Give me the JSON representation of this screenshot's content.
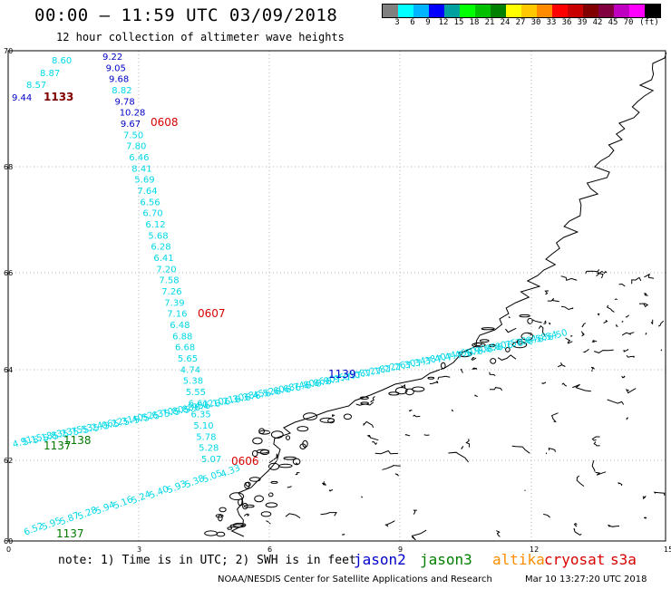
{
  "header": {
    "title": "00:00 – 11:59 UTC 03/09/2018",
    "subtitle": "12 hour collection of altimeter wave heights"
  },
  "legend": {
    "colors": [
      "#808080",
      "#00ffff",
      "#00b4ff",
      "#0000ff",
      "#00a0a0",
      "#00ff00",
      "#00c000",
      "#008000",
      "#ffff00",
      "#ffc800",
      "#ff8c00",
      "#ff0000",
      "#c80000",
      "#800000",
      "#800040",
      "#c000c0",
      "#ff00ff",
      "#000000"
    ],
    "labels": [
      "3",
      "6",
      "9",
      "12",
      "15",
      "18",
      "21",
      "24",
      "27",
      "30",
      "33",
      "36",
      "39",
      "42",
      "45",
      "70",
      "(ft)"
    ]
  },
  "map": {
    "lat_labels": [
      "70",
      "68",
      "66",
      "64",
      "62",
      "60"
    ],
    "lon_labels": [
      "0",
      "3",
      "6",
      "9",
      "12",
      "15"
    ],
    "colors": {
      "swh": "#00d8e8",
      "jason2": "#0000c8",
      "jason3": "#007800",
      "cryosat": "#d80000",
      "time_dark": "#800000",
      "coast": "#000000",
      "grid": "#b4b4b4"
    },
    "west_track": [
      {
        "t": "8.60",
        "c": "swh"
      },
      {
        "t": "8.87",
        "c": "swh"
      },
      {
        "t": "8.57",
        "c": "swh"
      },
      {
        "t": "9.44",
        "c": "jason2"
      },
      {
        "t": "1133",
        "c": "time_dark"
      }
    ],
    "north_track": [
      {
        "t": "9.22",
        "c": "jason2"
      },
      {
        "t": "9.05",
        "c": "jason2"
      },
      {
        "t": "9.68",
        "c": "jason2"
      },
      {
        "t": "8.82",
        "c": "swh"
      },
      {
        "t": "9.78",
        "c": "jason2"
      },
      {
        "t": "10.28",
        "c": "jason2"
      },
      {
        "t": "9.67",
        "c": "jason2"
      },
      {
        "t": "7.50",
        "c": "swh"
      },
      {
        "t": "7.80",
        "c": "swh"
      },
      {
        "t": "6.46",
        "c": "swh"
      },
      {
        "t": "8.41",
        "c": "swh"
      },
      {
        "t": "5.69",
        "c": "swh"
      },
      {
        "t": "7.64",
        "c": "swh"
      },
      {
        "t": "6.56",
        "c": "swh"
      },
      {
        "t": "6.70",
        "c": "swh"
      },
      {
        "t": "6.12",
        "c": "swh"
      },
      {
        "t": "5.68",
        "c": "swh"
      },
      {
        "t": "6.28",
        "c": "swh"
      },
      {
        "t": "6.41",
        "c": "swh"
      },
      {
        "t": "7.20",
        "c": "swh"
      },
      {
        "t": "7.58",
        "c": "swh"
      },
      {
        "t": "7.26",
        "c": "swh"
      },
      {
        "t": "7.39",
        "c": "swh"
      },
      {
        "t": "7.16",
        "c": "swh"
      },
      {
        "t": "6.48",
        "c": "swh"
      },
      {
        "t": "6.88",
        "c": "swh"
      },
      {
        "t": "6.68",
        "c": "swh"
      },
      {
        "t": "5.65",
        "c": "swh"
      },
      {
        "t": "4.74",
        "c": "swh"
      },
      {
        "t": "5.38",
        "c": "swh"
      },
      {
        "t": "5.55",
        "c": "swh"
      },
      {
        "t": "6.61",
        "c": "swh"
      },
      {
        "t": "6.35",
        "c": "swh"
      },
      {
        "t": "5.10",
        "c": "swh"
      },
      {
        "t": "5.78",
        "c": "swh"
      },
      {
        "t": "5.28",
        "c": "swh"
      },
      {
        "t": "5.07",
        "c": "swh"
      }
    ],
    "times": [
      {
        "t": "0608",
        "c": "cryosat"
      },
      {
        "t": "0607",
        "c": "cryosat"
      },
      {
        "t": "0606",
        "c": "cryosat"
      },
      {
        "t": "1138",
        "c": "jason3"
      },
      {
        "t": "1137",
        "c": "jason3"
      },
      {
        "t": "1137",
        "c": "jason3"
      },
      {
        "t": "1139",
        "c": "jason2"
      }
    ],
    "middle_track": [
      {
        "t": "4.91",
        "c": "swh"
      },
      {
        "t": "5.15",
        "c": "swh"
      },
      {
        "t": "5.18",
        "c": "swh"
      },
      {
        "t": "5.83",
        "c": "swh"
      },
      {
        "t": "5.23",
        "c": "swh"
      },
      {
        "t": "5.75",
        "c": "swh"
      },
      {
        "t": "5.53",
        "c": "swh"
      },
      {
        "t": "5.24",
        "c": "swh"
      },
      {
        "t": "5.06",
        "c": "swh"
      },
      {
        "t": "5.22",
        "c": "swh"
      },
      {
        "t": "5.31",
        "c": "swh"
      },
      {
        "t": "5.40",
        "c": "swh"
      },
      {
        "t": "5.52",
        "c": "swh"
      },
      {
        "t": "5.63",
        "c": "swh"
      },
      {
        "t": "5.70",
        "c": "swh"
      },
      {
        "t": "5.80",
        "c": "swh"
      },
      {
        "t": "5.88",
        "c": "swh"
      },
      {
        "t": "5.95",
        "c": "swh"
      },
      {
        "t": "6.02",
        "c": "swh"
      },
      {
        "t": "6.10",
        "c": "swh"
      },
      {
        "t": "6.21",
        "c": "swh"
      },
      {
        "t": "6.30",
        "c": "swh"
      },
      {
        "t": "6.38",
        "c": "swh"
      },
      {
        "t": "6.45",
        "c": "swh"
      },
      {
        "t": "6.52",
        "c": "swh"
      },
      {
        "t": "6.60",
        "c": "swh"
      },
      {
        "t": "6.68",
        "c": "swh"
      },
      {
        "t": "6.74",
        "c": "swh"
      },
      {
        "t": "6.80",
        "c": "swh"
      },
      {
        "t": "6.86",
        "c": "swh"
      },
      {
        "t": "6.90",
        "c": "swh"
      },
      {
        "t": "6.95",
        "c": "swh"
      },
      {
        "t": "7.01",
        "c": "swh"
      },
      {
        "t": "7.08",
        "c": "swh"
      },
      {
        "t": "7.12",
        "c": "swh"
      },
      {
        "t": "7.18",
        "c": "swh"
      },
      {
        "t": "7.22",
        "c": "swh"
      },
      {
        "t": "7.26",
        "c": "swh"
      },
      {
        "t": "7.30",
        "c": "swh"
      },
      {
        "t": "7.34",
        "c": "swh"
      },
      {
        "t": "7.38",
        "c": "swh"
      },
      {
        "t": "7.40",
        "c": "swh"
      },
      {
        "t": "7.44",
        "c": "swh"
      },
      {
        "t": "7.46",
        "c": "swh"
      },
      {
        "t": "7.50",
        "c": "swh"
      },
      {
        "t": "6.90",
        "c": "swh"
      },
      {
        "t": "6.85",
        "c": "swh"
      },
      {
        "t": "6.80",
        "c": "swh"
      },
      {
        "t": "6.75",
        "c": "swh"
      },
      {
        "t": "6.70",
        "c": "swh"
      },
      {
        "t": "6.64",
        "c": "swh"
      },
      {
        "t": "6.58",
        "c": "swh"
      },
      {
        "t": "6.54",
        "c": "swh"
      },
      {
        "t": "6.50",
        "c": "swh"
      }
    ],
    "south_track": [
      {
        "t": "6.52",
        "c": "swh"
      },
      {
        "t": "5.95",
        "c": "swh"
      },
      {
        "t": "5.87",
        "c": "swh"
      },
      {
        "t": "5.28",
        "c": "swh"
      },
      {
        "t": "5.94",
        "c": "swh"
      },
      {
        "t": "5.16",
        "c": "swh"
      },
      {
        "t": "5.24",
        "c": "swh"
      },
      {
        "t": "5.40",
        "c": "swh"
      },
      {
        "t": "5.93",
        "c": "swh"
      },
      {
        "t": "5.38",
        "c": "swh"
      },
      {
        "t": "5.05",
        "c": "swh"
      },
      {
        "t": "4.33",
        "c": "swh"
      }
    ]
  },
  "footer": {
    "note": "note: 1) Time is in UTC; 2) SWH is in feet",
    "satellites": [
      {
        "name": "jason2",
        "color": "#0000c8"
      },
      {
        "name": "jason3",
        "color": "#008000"
      },
      {
        "name": "altika",
        "color": "#ff8c00"
      },
      {
        "name": "cryosat",
        "color": "#d80000"
      },
      {
        "name": "s3a",
        "color": "#d80000"
      }
    ],
    "credit": "NOAA/NESDIS Center for Satellite Applications and Research",
    "timestamp": "Mar 10 13:27:20 UTC 2018"
  }
}
